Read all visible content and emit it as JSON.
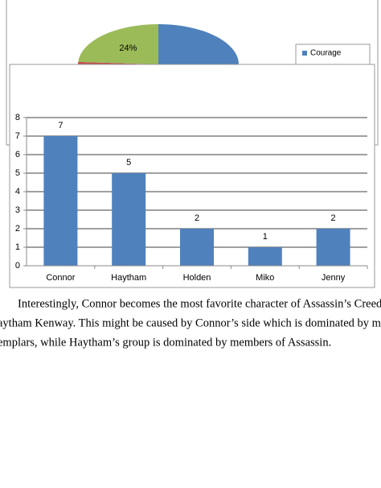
{
  "chart_data": [
    {
      "type": "pie",
      "categories": [
        "Courage",
        null,
        null
      ],
      "values": [
        60,
        16,
        24
      ],
      "value_labels": [
        null,
        null,
        "24%"
      ],
      "colors": [
        "#4f81bd",
        "#c0504d",
        "#9bbb59"
      ]
    },
    {
      "type": "bar",
      "categories": [
        "Connor",
        "Haytham",
        "Holden",
        "Miko",
        "Jenny"
      ],
      "values": [
        7,
        5,
        2,
        1,
        2
      ],
      "color": "#4f81bd",
      "ylim": [
        0,
        8
      ],
      "yticks": [
        0,
        1,
        2,
        3,
        4,
        5,
        6,
        7,
        8
      ],
      "grid": true
    }
  ],
  "paragraph": {
    "lines": [
      "Interestingly, Connor becomes the most favorite character of Assassin’s Creed ins",
      "aytham Kenway. This might be caused by Connor’s side which is dominated by mem",
      "emplars, while Haytham’s group is dominated by members of Assassin."
    ]
  }
}
